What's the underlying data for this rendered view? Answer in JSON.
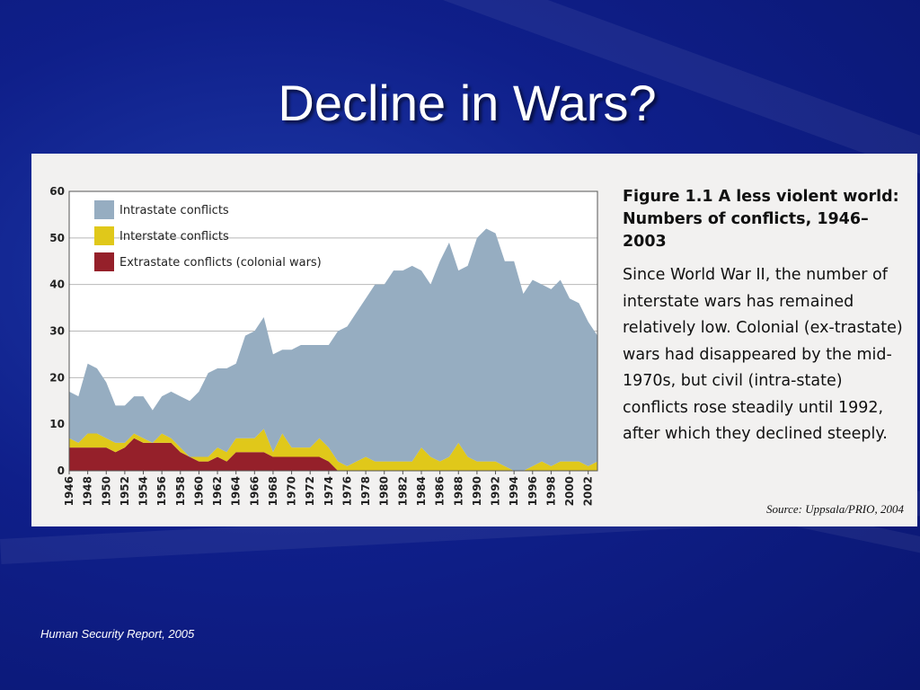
{
  "slide": {
    "title": "Decline in Wars?",
    "footer": "Human Security Report, 2005"
  },
  "figure": {
    "heading_line1": "Figure 1.1 A less violent world:",
    "heading_line2": "Numbers of conflicts, 1946–2003",
    "body": "Since World War II, the number of interstate wars has remained relatively low. Colonial (ex-trastate) wars had disappeared by the mid-1970s, but civil (intra-state) conflicts rose steadily until 1992, after which they declined steeply.",
    "source": "Source: Uppsala/PRIO, 2004"
  },
  "colors": {
    "intrastate": "#96adc1",
    "interstate": "#e0c81a",
    "extrastate": "#95202a",
    "background": "#0f1f8a"
  },
  "chart_data": {
    "type": "area",
    "stacked": true,
    "x": [
      1946,
      1947,
      1948,
      1949,
      1950,
      1951,
      1952,
      1953,
      1954,
      1955,
      1956,
      1957,
      1958,
      1959,
      1960,
      1961,
      1962,
      1963,
      1964,
      1965,
      1966,
      1967,
      1968,
      1969,
      1970,
      1971,
      1972,
      1973,
      1974,
      1975,
      1976,
      1977,
      1978,
      1979,
      1980,
      1981,
      1982,
      1983,
      1984,
      1985,
      1986,
      1987,
      1988,
      1989,
      1990,
      1991,
      1992,
      1993,
      1994,
      1995,
      1996,
      1997,
      1998,
      1999,
      2000,
      2001,
      2002,
      2003
    ],
    "xticks": [
      1946,
      1948,
      1950,
      1952,
      1954,
      1956,
      1958,
      1960,
      1962,
      1964,
      1966,
      1968,
      1970,
      1972,
      1974,
      1976,
      1978,
      1980,
      1982,
      1984,
      1986,
      1988,
      1990,
      1992,
      1994,
      1996,
      1998,
      2000,
      2002
    ],
    "ylim": [
      0,
      60
    ],
    "yticks": [
      0,
      10,
      20,
      30,
      40,
      50,
      60
    ],
    "grid": "horizontal",
    "legend_position": "top-left",
    "series": [
      {
        "name": "Extrastate conflicts (colonial wars)",
        "color_key": "extrastate",
        "values": [
          5,
          5,
          5,
          5,
          5,
          4,
          5,
          7,
          6,
          6,
          6,
          6,
          4,
          3,
          2,
          2,
          3,
          2,
          4,
          4,
          4,
          4,
          3,
          3,
          3,
          3,
          3,
          3,
          2,
          0,
          0,
          0,
          0,
          0,
          0,
          0,
          0,
          0,
          0,
          0,
          0,
          0,
          0,
          0,
          0,
          0,
          0,
          0,
          0,
          0,
          0,
          0,
          0,
          0,
          0,
          0,
          0,
          0
        ]
      },
      {
        "name": "Interstate conflicts",
        "color_key": "interstate",
        "values": [
          2,
          1,
          3,
          3,
          2,
          2,
          1,
          1,
          1,
          0,
          2,
          1,
          1,
          0,
          1,
          1,
          2,
          2,
          3,
          3,
          3,
          5,
          1,
          5,
          2,
          2,
          2,
          4,
          3,
          2,
          1,
          2,
          3,
          2,
          2,
          2,
          2,
          2,
          5,
          3,
          2,
          3,
          6,
          3,
          2,
          2,
          2,
          1,
          0,
          0,
          1,
          2,
          1,
          2,
          2,
          2,
          1,
          2
        ]
      },
      {
        "name": "Intrastate conflicts",
        "color_key": "intrastate",
        "values": [
          10,
          10,
          15,
          14,
          12,
          8,
          8,
          8,
          9,
          7,
          8,
          10,
          11,
          12,
          14,
          18,
          17,
          18,
          16,
          22,
          23,
          24,
          21,
          18,
          21,
          22,
          22,
          20,
          22,
          28,
          30,
          32,
          34,
          38,
          38,
          41,
          41,
          42,
          38,
          37,
          43,
          46,
          37,
          41,
          48,
          50,
          49,
          44,
          45,
          38,
          40,
          38,
          38,
          39,
          35,
          34,
          31,
          27
        ]
      }
    ]
  }
}
